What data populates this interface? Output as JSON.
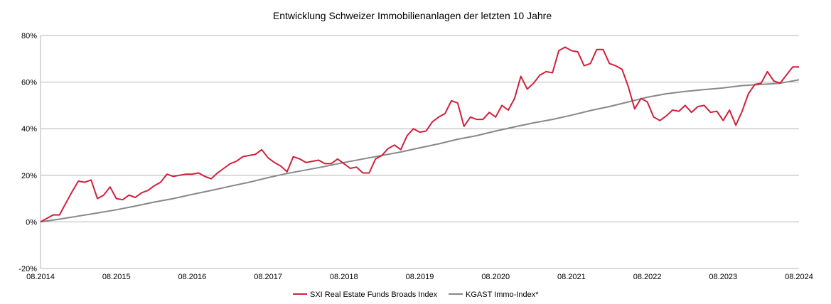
{
  "chart_data": {
    "type": "line",
    "title": "Entwicklung Schweizer Immobilienanlagen der letzten 10 Jahre",
    "xlabel": "",
    "ylabel": "",
    "x_ticks": [
      "08.2014",
      "08.2015",
      "08.2016",
      "08.2017",
      "08.2018",
      "08.2019",
      "08.2020",
      "08.2021",
      "08.2022",
      "08.2023",
      "08.2024"
    ],
    "y_ticks": [
      "80%",
      "60%",
      "40%",
      "20%",
      "0%",
      "-20%"
    ],
    "y_tick_values": [
      80,
      60,
      40,
      20,
      0,
      -20
    ],
    "xlim": [
      0,
      10
    ],
    "ylim": [
      -20,
      80
    ],
    "grid": "horizontal",
    "legend_position": "bottom",
    "series": [
      {
        "name": "SXI Real Estate Funds Broads Index",
        "color": "#d0203a",
        "x": [
          0,
          0.083,
          0.167,
          0.25,
          0.333,
          0.417,
          0.5,
          0.583,
          0.667,
          0.75,
          0.833,
          0.917,
          1.0,
          1.083,
          1.167,
          1.25,
          1.333,
          1.417,
          1.5,
          1.583,
          1.667,
          1.75,
          1.833,
          1.917,
          2.0,
          2.083,
          2.167,
          2.25,
          2.333,
          2.417,
          2.5,
          2.583,
          2.667,
          2.75,
          2.833,
          2.917,
          3.0,
          3.083,
          3.167,
          3.25,
          3.333,
          3.417,
          3.5,
          3.583,
          3.667,
          3.75,
          3.833,
          3.917,
          4.0,
          4.083,
          4.167,
          4.25,
          4.333,
          4.417,
          4.5,
          4.583,
          4.667,
          4.75,
          4.833,
          4.917,
          5.0,
          5.083,
          5.167,
          5.25,
          5.333,
          5.417,
          5.5,
          5.583,
          5.667,
          5.75,
          5.833,
          5.917,
          6.0,
          6.083,
          6.167,
          6.25,
          6.333,
          6.417,
          6.5,
          6.583,
          6.667,
          6.75,
          6.833,
          6.917,
          7.0,
          7.083,
          7.167,
          7.25,
          7.333,
          7.417,
          7.5,
          7.583,
          7.667,
          7.75,
          7.833,
          7.917,
          8.0,
          8.083,
          8.167,
          8.25,
          8.333,
          8.417,
          8.5,
          8.583,
          8.667,
          8.75,
          8.833,
          8.917,
          9.0,
          9.083,
          9.167,
          9.25,
          9.333,
          9.417,
          9.5,
          9.583,
          9.667,
          9.75,
          9.833,
          9.917,
          10.0
        ],
        "values": [
          0,
          1.5,
          3,
          3,
          8,
          13,
          17.5,
          17,
          18,
          10,
          11.5,
          15,
          10,
          9.5,
          11.5,
          10.5,
          12.5,
          13.5,
          15.5,
          17,
          20.5,
          19.5,
          20,
          20.5,
          20.5,
          21,
          19.5,
          18.5,
          21,
          23,
          25,
          26,
          28,
          28.5,
          29,
          31,
          27.5,
          25.5,
          24,
          21.5,
          28,
          27,
          25.5,
          26,
          26.5,
          25,
          25,
          27,
          25,
          23,
          23.5,
          21,
          21,
          27,
          28.5,
          31.5,
          33,
          31,
          37,
          40,
          38.5,
          39,
          43,
          45,
          46.5,
          52,
          51,
          41,
          45,
          44,
          44,
          47,
          45,
          50,
          48,
          53,
          62.5,
          57,
          59.5,
          63,
          64.5,
          64,
          73.5,
          75,
          73.5,
          73,
          67,
          68,
          74,
          74,
          68,
          67,
          65.5,
          58,
          48.5,
          53,
          51.5,
          45,
          43.5,
          45.5,
          48,
          47.5,
          50,
          47,
          49.5,
          50,
          47,
          47.5,
          43.5,
          48,
          41.5,
          47.5,
          55,
          59,
          59.5,
          64.5,
          60.5,
          59.5,
          63,
          66.5,
          66.5
        ]
      },
      {
        "name": "KGAST Immo-Index*",
        "color": "#888888",
        "x": [
          0,
          0.25,
          0.5,
          0.75,
          1.0,
          1.25,
          1.5,
          1.75,
          2.0,
          2.25,
          2.5,
          2.75,
          3.0,
          3.25,
          3.5,
          3.75,
          4.0,
          4.25,
          4.5,
          4.75,
          5.0,
          5.25,
          5.5,
          5.75,
          6.0,
          6.25,
          6.5,
          6.75,
          7.0,
          7.25,
          7.5,
          7.75,
          8.0,
          8.25,
          8.5,
          8.75,
          9.0,
          9.25,
          9.5,
          9.75,
          10.0
        ],
        "values": [
          0,
          1.2,
          2.5,
          3.8,
          5.2,
          6.8,
          8.5,
          10.0,
          11.8,
          13.5,
          15.3,
          17.0,
          19.0,
          20.8,
          22.3,
          23.8,
          25.5,
          27.0,
          28.5,
          30.0,
          31.8,
          33.5,
          35.5,
          37.0,
          39.0,
          40.8,
          42.5,
          44.0,
          45.8,
          47.8,
          49.5,
          51.5,
          53.5,
          55.0,
          56.0,
          56.8,
          57.5,
          58.5,
          59.0,
          59.5,
          61.0
        ]
      }
    ]
  }
}
